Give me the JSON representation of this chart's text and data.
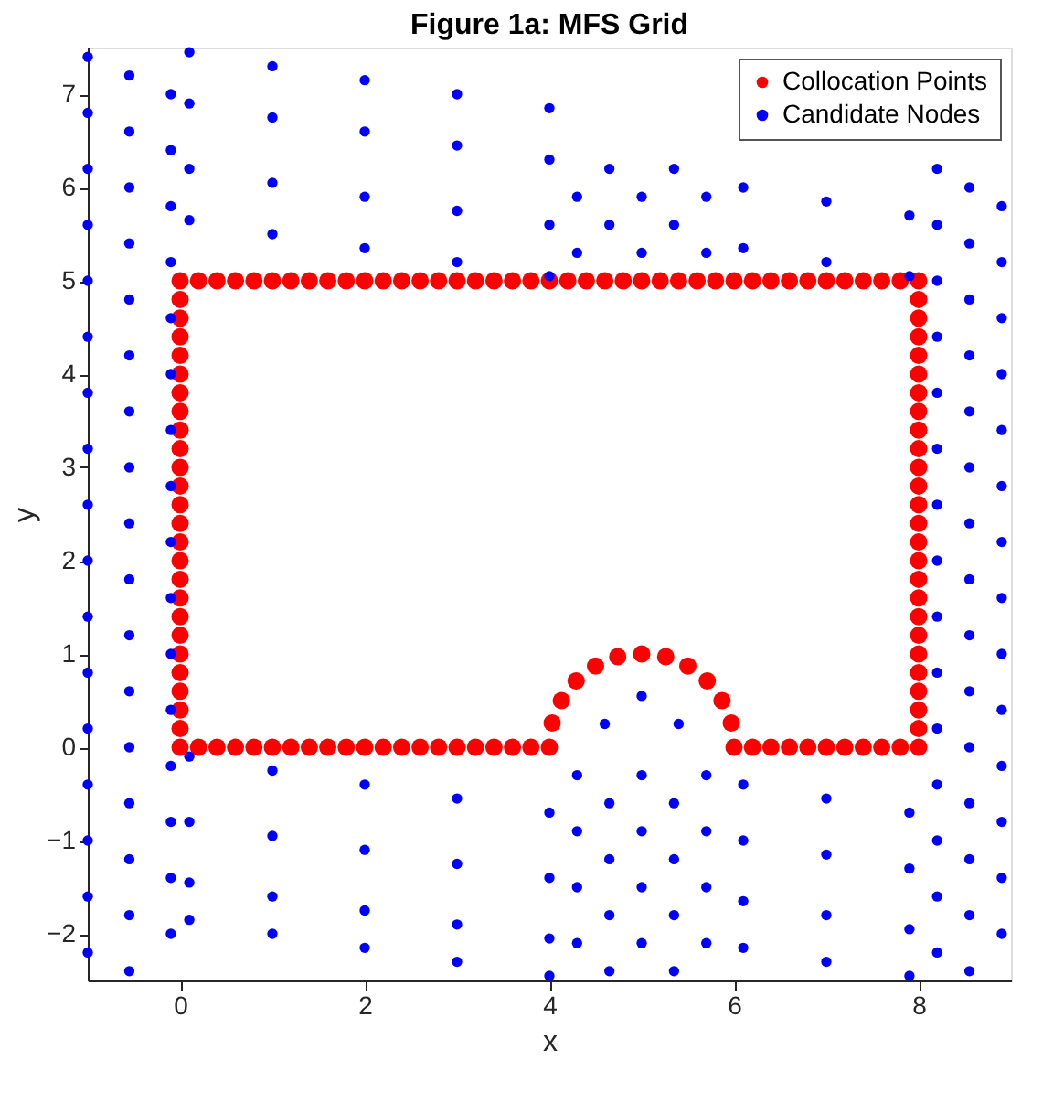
{
  "chart_data": {
    "type": "scatter",
    "title": "Figure 1a: MFS Grid",
    "xlabel": "x",
    "ylabel": "y",
    "xlim": [
      -1,
      9
    ],
    "ylim": [
      -2.5,
      7.5
    ],
    "xticks": [
      0,
      2,
      4,
      6,
      8
    ],
    "yticks": [
      -2,
      -1,
      0,
      1,
      2,
      3,
      4,
      5,
      6,
      7
    ],
    "grid": false,
    "legend": "top right",
    "marker": "circle",
    "series": [
      {
        "name": "Collocation Points",
        "color": "#ff0000",
        "x": [
          0,
          0.2,
          0.4,
          0.6,
          0.8,
          1,
          1.2,
          1.4,
          1.6,
          1.8,
          2,
          2.2,
          2.4,
          2.6,
          2.8,
          3,
          3.2,
          3.4,
          3.6,
          3.8,
          4,
          4.03,
          4.13,
          4.29,
          4.5,
          4.74,
          5,
          5.26,
          5.5,
          5.71,
          5.87,
          5.97,
          6,
          6.2,
          6.4,
          6.6,
          6.8,
          7,
          7.2,
          7.4,
          7.6,
          7.8,
          8,
          8,
          8,
          8,
          8,
          8,
          8,
          8,
          8,
          8,
          8,
          8,
          8,
          8,
          8,
          8,
          8,
          8,
          8,
          8,
          8,
          8,
          8,
          8,
          8,
          8,
          7.8,
          7.6,
          7.4,
          7.2,
          7,
          6.8,
          6.6,
          6.4,
          6.2,
          6,
          5.8,
          5.6,
          5.4,
          5.2,
          5,
          4.8,
          4.6,
          4.4,
          4.2,
          4,
          3.8,
          3.6,
          3.4,
          3.2,
          3,
          2.8,
          2.6,
          2.4,
          2.2,
          2,
          1.8,
          1.6,
          1.4,
          1.2,
          1,
          0.8,
          0.6,
          0.4,
          0.2,
          0,
          0,
          0,
          0,
          0,
          0,
          0,
          0,
          0,
          0,
          0,
          0,
          0,
          0,
          0,
          0,
          0,
          0,
          0,
          0,
          0,
          0,
          0,
          0,
          0
        ],
        "values": [
          0,
          0,
          0,
          0,
          0,
          0,
          0,
          0,
          0,
          0,
          0,
          0,
          0,
          0,
          0,
          0,
          0,
          0,
          0,
          0,
          0,
          0.26,
          0.5,
          0.71,
          0.87,
          0.97,
          1,
          0.97,
          0.87,
          0.71,
          0.5,
          0.26,
          0,
          0,
          0,
          0,
          0,
          0,
          0,
          0,
          0,
          0,
          0,
          0.2,
          0.4,
          0.6,
          0.8,
          1,
          1.2,
          1.4,
          1.6,
          1.8,
          2,
          2.2,
          2.4,
          2.6,
          2.8,
          3,
          3.2,
          3.4,
          3.6,
          3.8,
          4,
          4.2,
          4.4,
          4.6,
          4.8,
          5,
          5,
          5,
          5,
          5,
          5,
          5,
          5,
          5,
          5,
          5,
          5,
          5,
          5,
          5,
          5,
          5,
          5,
          5,
          5,
          5,
          5,
          5,
          5,
          5,
          5,
          5,
          5,
          5,
          5,
          5,
          5,
          5,
          5,
          5,
          5,
          5,
          5,
          5,
          5,
          5,
          4.8,
          4.6,
          4.4,
          4.2,
          4,
          3.8,
          3.6,
          3.4,
          3.2,
          3,
          2.8,
          2.6,
          2.4,
          2.2,
          2,
          1.8,
          1.6,
          1.4,
          1.2,
          1,
          0.8,
          0.6,
          0.4,
          0.2
        ]
      },
      {
        "name": "Candidate Nodes",
        "color": "#0000ff",
        "x": [
          -1,
          -0.55,
          -0.1,
          -1,
          -0.55,
          -0.1,
          -1,
          -0.55,
          -0.1,
          -1,
          -0.55,
          -0.1,
          -1,
          -0.55,
          -0.1,
          -1,
          -0.55,
          -0.1,
          -1,
          -0.55,
          -0.1,
          -1,
          -0.55,
          -0.1,
          -1,
          -0.55,
          -0.1,
          -1,
          -0.55,
          -0.1,
          -1,
          -0.55,
          -0.1,
          -1,
          -0.55,
          -0.1,
          -1,
          -0.55,
          -0.1,
          -1,
          -0.55,
          -0.1,
          -1,
          -0.55,
          -0.1,
          -1,
          -0.55,
          -0.1,
          -1,
          -0.55,
          8.2,
          8.55,
          8.9,
          8.2,
          8.55,
          8.9,
          8.2,
          8.55,
          8.9,
          8.2,
          8.55,
          8.9,
          8.2,
          8.55,
          8.9,
          8.2,
          8.55,
          8.9,
          8.2,
          8.55,
          8.9,
          8.2,
          8.55,
          8.9,
          8.2,
          8.55,
          8.9,
          8.2,
          8.55,
          8.9,
          8.2,
          8.55,
          8.9,
          8.2,
          8.55,
          8.9,
          8.2,
          8.55,
          8.9,
          8.2,
          8.55,
          8.9,
          8.2,
          8.55,
          0.1,
          1,
          2,
          3,
          4,
          0.1,
          1,
          2,
          3,
          4,
          0.1,
          1,
          2,
          3,
          4,
          0.1,
          1,
          2,
          3,
          4,
          0.1,
          1,
          2,
          3,
          4,
          0.1,
          1,
          2,
          3,
          4,
          0.1,
          1,
          2,
          3,
          4,
          0.1,
          1,
          2,
          3,
          4,
          6.1,
          7,
          7.9,
          6.1,
          7,
          7.9,
          6.1,
          7,
          7.9,
          6.1,
          7,
          7.9,
          6.1,
          7,
          7.9,
          6.1,
          7,
          7.9,
          4.3,
          5,
          5.7,
          4.3,
          5,
          5.7,
          4.3,
          5,
          5.7,
          4.3,
          5,
          5.7,
          4.65,
          5.35,
          4.65,
          5.35,
          4.65,
          5.35,
          4.65,
          5.35,
          4.6,
          5,
          5.4,
          4.3,
          5,
          5.7,
          4.3,
          5,
          5.7,
          4.65,
          5.35,
          4.65,
          5.35
        ],
        "values": [
          7.4,
          7.2,
          7.0,
          6.8,
          6.6,
          6.4,
          6.2,
          6.0,
          5.8,
          5.6,
          5.4,
          5.2,
          5.0,
          4.8,
          4.6,
          4.4,
          4.2,
          4.0,
          3.8,
          3.6,
          3.4,
          3.2,
          3.0,
          2.8,
          2.6,
          2.4,
          2.2,
          2.0,
          1.8,
          1.6,
          1.4,
          1.2,
          1.0,
          0.8,
          0.6,
          0.4,
          0.2,
          0.0,
          -0.2,
          -0.4,
          -0.6,
          -0.8,
          -1.0,
          -1.2,
          -1.4,
          -1.6,
          -1.8,
          -2.0,
          -2.2,
          -2.4,
          6.2,
          6.0,
          5.8,
          5.6,
          5.4,
          5.2,
          5.0,
          4.8,
          4.6,
          4.4,
          4.2,
          4.0,
          3.8,
          3.6,
          3.4,
          3.2,
          3.0,
          2.8,
          2.6,
          2.4,
          2.2,
          2.0,
          1.8,
          1.6,
          1.4,
          1.2,
          1.0,
          0.8,
          0.6,
          0.4,
          0.2,
          0.0,
          -0.2,
          -0.4,
          -0.6,
          -0.8,
          -1.0,
          -1.2,
          -1.4,
          -1.6,
          -1.8,
          -2.0,
          -2.2,
          -2.4,
          -0.1,
          -0.25,
          -0.4,
          -0.55,
          -0.7,
          -0.8,
          -0.95,
          -1.1,
          -1.25,
          -1.4,
          -1.45,
          -1.6,
          -1.75,
          -1.9,
          -2.05,
          -1.85,
          -2.0,
          -2.15,
          -2.3,
          -2.45,
          7.45,
          7.3,
          7.15,
          7.0,
          6.85,
          6.9,
          6.75,
          6.6,
          6.45,
          6.3,
          6.2,
          6.05,
          5.9,
          5.75,
          5.6,
          5.65,
          5.5,
          5.35,
          5.2,
          5.05,
          -0.4,
          -0.55,
          -0.7,
          -1.0,
          -1.15,
          -1.3,
          -1.65,
          -1.8,
          -1.95,
          -2.15,
          -2.3,
          -2.45,
          6.0,
          5.85,
          5.7,
          5.35,
          5.2,
          5.05,
          -0.3,
          -0.3,
          -0.3,
          -0.9,
          -0.9,
          -0.9,
          -1.5,
          -1.5,
          -1.5,
          -2.1,
          -2.1,
          -2.1,
          -0.6,
          -0.6,
          -1.2,
          -1.2,
          -1.8,
          -1.8,
          -2.4,
          -2.4,
          0.25,
          0.55,
          0.25,
          5.3,
          5.3,
          5.3,
          5.9,
          5.9,
          5.9,
          5.6,
          5.6,
          6.2,
          6.2
        ]
      }
    ]
  }
}
